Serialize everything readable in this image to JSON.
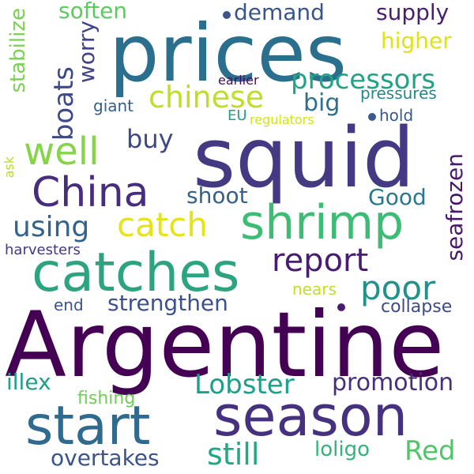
{
  "palette": {
    "argentine": "#440154",
    "prices": "#2a6f8e",
    "squid": "#443a83",
    "catches": "#2ca47f",
    "season": "#46317e",
    "start": "#2e6b8e",
    "shrimp": "#3dbc74",
    "china": "#472d7b",
    "well": "#86d549",
    "boats": "#3e4989",
    "chinese": "#bddf26",
    "processors": "#20a386",
    "catch": "#e5e419",
    "report": "#481c6e",
    "poor": "#21918c",
    "strengthen": "#3c508b",
    "lobster": "#1f9e89",
    "using": "#33638d",
    "promotion": "#46307e",
    "still": "#22a785",
    "red": "#52c569",
    "seafrozen": "#48186a",
    "supply": "#481f70",
    "demand": "#39558c",
    "soften": "#5ec962",
    "higher": "#dde318",
    "stabilize": "#7ad151",
    "worry": "#414487",
    "big": "#2d708e",
    "buy": "#3f4788",
    "shoot": "#355f8d",
    "good": "#2a788e",
    "illex": "#1fa088",
    "overtakes": "#3b528b",
    "loligo": "#31b57b",
    "fishing": "#6ece58",
    "end": "#3b528b",
    "nears": "#c2df23",
    "collapse": "#3e4a89",
    "ask": "#b5de2b",
    "harvesters": "#453781",
    "pressures": "#24868e",
    "hold": "#38598c",
    "giant": "#355e8d",
    "earlier": "#460b5e",
    "eu": "#1fa287",
    "regulators": "#d2e21b"
  },
  "words": {
    "argentine": "Argentine",
    "prices": "prices",
    "squid": "squid",
    "catches": "catches",
    "season": "season",
    "start": "start",
    "shrimp": "shrimp",
    "china": "China",
    "well": "well",
    "boats": "boats",
    "chinese": "chinese",
    "processors": "processors",
    "catch": "catch",
    "report": "report",
    "poor": "poor",
    "strengthen": "strengthen",
    "lobster": "Lobster",
    "using": "using",
    "promotion": "promotion",
    "still": "still",
    "red": "Red",
    "seafrozen": "seafrozen",
    "supply": "supply",
    "demand": "demand",
    "soften": "soften",
    "higher": "higher",
    "stabilize": "stabilize",
    "worry": "worry",
    "big": "big",
    "buy": "buy",
    "shoot": "shoot",
    "good": "Good",
    "illex": "illex",
    "overtakes": "overtakes",
    "loligo": "loligo",
    "fishing": "fishing",
    "end": "end",
    "nears": "nears",
    "collapse": "collapse",
    "ask": "ask",
    "harvesters": "harvesters",
    "pressures": "pressures",
    "hold": "hold",
    "giant": "giant",
    "earlier": "earlier",
    "eu": "EU",
    "regulators": "regulators"
  }
}
